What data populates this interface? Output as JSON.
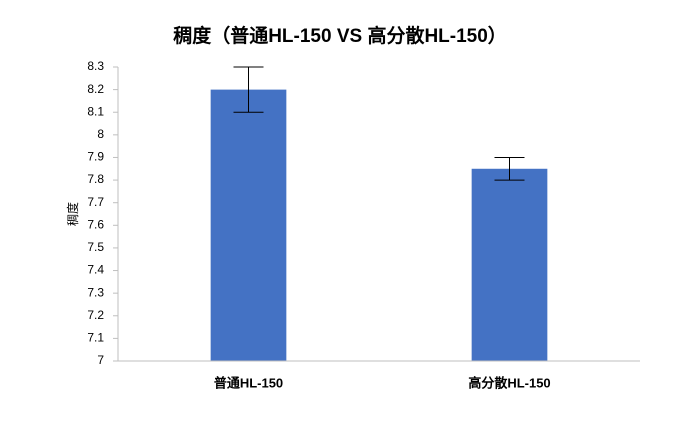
{
  "chart_data": {
    "type": "bar",
    "title": "稠度（普通HL-150 VS 高分散HL-150）",
    "y_label": "稠度",
    "categories": [
      "普通HL-150",
      "高分散HL-150"
    ],
    "values": [
      8.2,
      7.85
    ],
    "errors": [
      0.1,
      0.05
    ],
    "color": "#4472c4",
    "ylim": [
      7,
      8.3
    ],
    "yticks": [
      7,
      7.1,
      7.2,
      7.3,
      7.4,
      7.5,
      7.6,
      7.7,
      7.8,
      7.9,
      8,
      8.1,
      8.2,
      8.3
    ],
    "grid": false
  }
}
